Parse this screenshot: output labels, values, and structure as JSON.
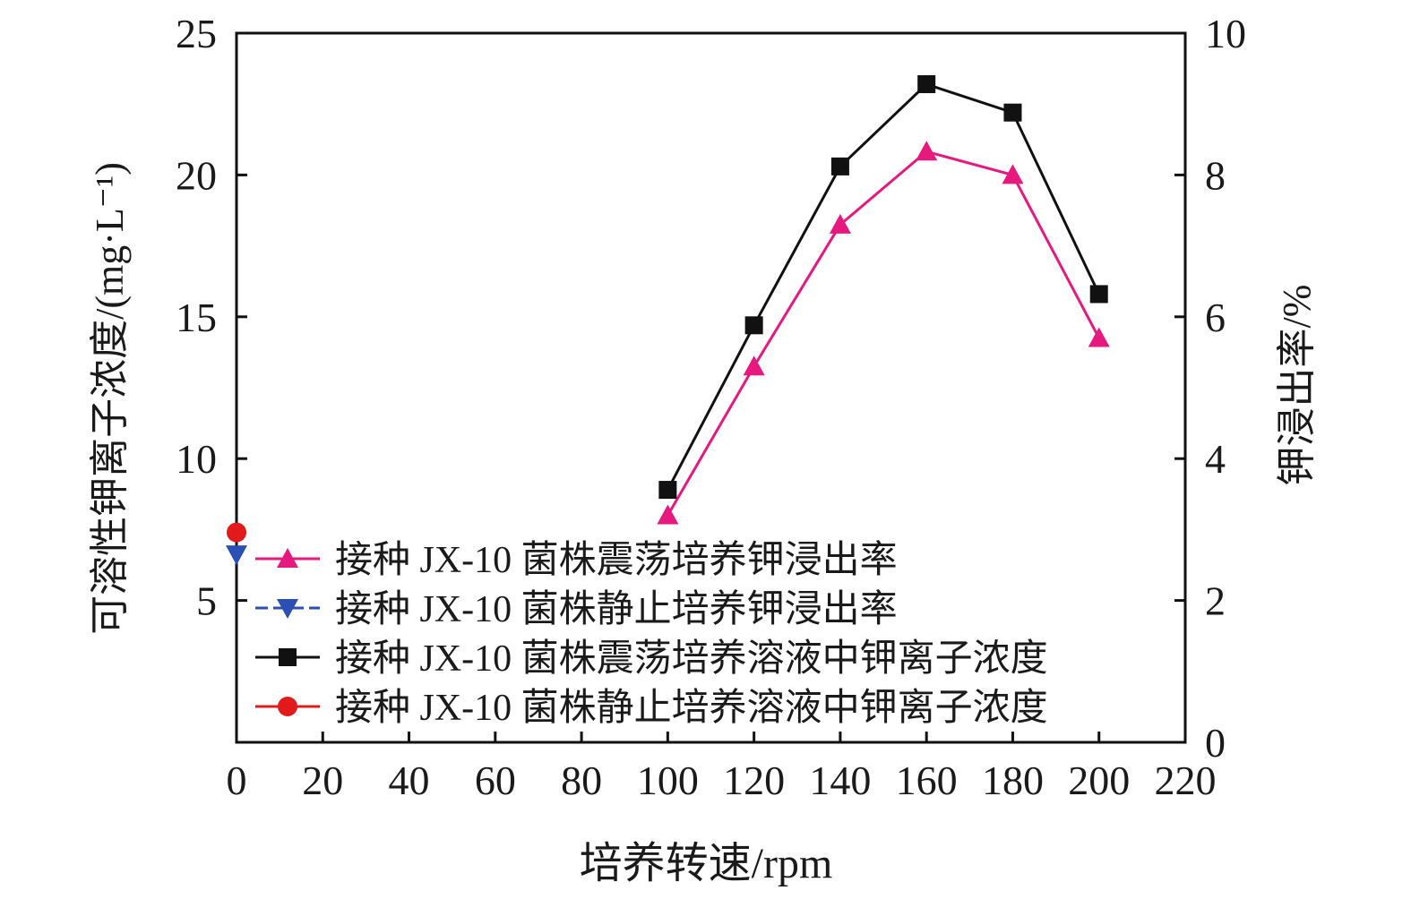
{
  "chart_data": {
    "type": "line",
    "xlabel": "培养转速/rpm",
    "ylabel_left": "可溶性钾离子浓度/(mg·L⁻¹)",
    "ylabel_right": "钾浸出率/%",
    "xlim": [
      0,
      220
    ],
    "ylim_left": [
      0,
      25
    ],
    "ylim_right": [
      0,
      10
    ],
    "x_ticks": [
      "0",
      "20",
      "40",
      "60",
      "80",
      "100",
      "120",
      "140",
      "160",
      "180",
      "200",
      "220"
    ],
    "y_left_ticks": [
      "5",
      "10",
      "15",
      "20",
      "25"
    ],
    "y_right_ticks": [
      "0",
      "2",
      "4",
      "6",
      "8",
      "10"
    ],
    "grid": false,
    "legend_position": "lower-left",
    "series": [
      {
        "name": "接种 JX-10 菌株震荡培养钾浸出率",
        "axis": "right",
        "marker": "triangle-up",
        "color": "#e6197f",
        "line_style": "solid",
        "points": [
          [
            100,
            3.2
          ],
          [
            120,
            5.3
          ],
          [
            140,
            7.3
          ],
          [
            160,
            8.33
          ],
          [
            180,
            8.0
          ],
          [
            200,
            5.7
          ]
        ]
      },
      {
        "name": "接种 JX-10 菌株静止培养钾浸出率",
        "axis": "right",
        "marker": "triangle-down",
        "color": "#2b4fb5",
        "line_style": "dashed",
        "points": [
          [
            0,
            2.65
          ]
        ]
      },
      {
        "name": "接种 JX-10 菌株震荡培养溶液中钾离子浓度",
        "axis": "left",
        "marker": "square",
        "color": "#111111",
        "line_style": "solid",
        "points": [
          [
            100,
            8.9
          ],
          [
            120,
            14.7
          ],
          [
            140,
            20.3
          ],
          [
            160,
            23.2
          ],
          [
            180,
            22.2
          ],
          [
            200,
            15.8
          ]
        ]
      },
      {
        "name": "接种 JX-10 菌株静止培养溶液中钾离子浓度",
        "axis": "left",
        "marker": "circle",
        "color": "#e31a1c",
        "line_style": "solid",
        "points": [
          [
            0,
            7.4
          ]
        ]
      }
    ]
  }
}
